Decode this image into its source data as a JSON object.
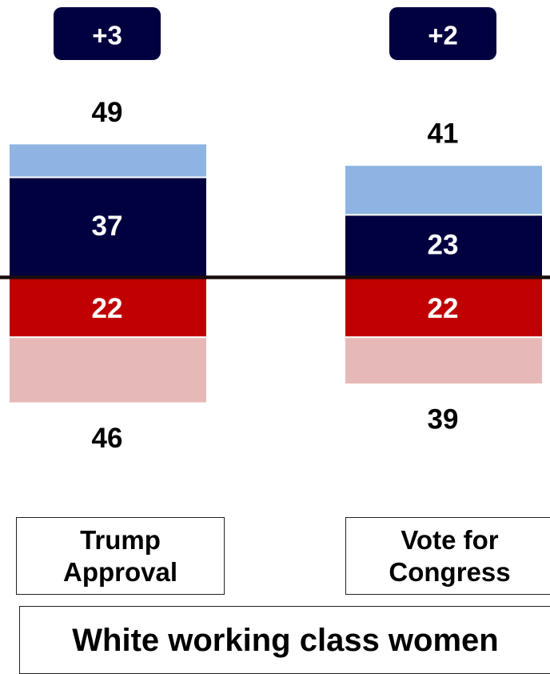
{
  "chart_data": {
    "type": "bar",
    "stacked": "diverging",
    "categories": [
      "Trump\nApproval",
      "Vote for\nCongress"
    ],
    "series": [
      {
        "values": [
          12,
          18
        ],
        "color": "#8eb4e3"
      },
      {
        "values": [
          37,
          23
        ],
        "color": "#000040"
      },
      {
        "values": [
          22,
          22
        ],
        "color": "#c00000"
      },
      {
        "values": [
          24,
          17
        ],
        "color": "#e6b9b8"
      }
    ],
    "totals_positive": [
      49,
      41
    ],
    "totals_negative": [
      46,
      39
    ],
    "margin_badges": [
      "+3",
      "+2"
    ],
    "badge_color": "#000040",
    "baseline_color": "#1a0d0d",
    "footer": "White working class women"
  }
}
